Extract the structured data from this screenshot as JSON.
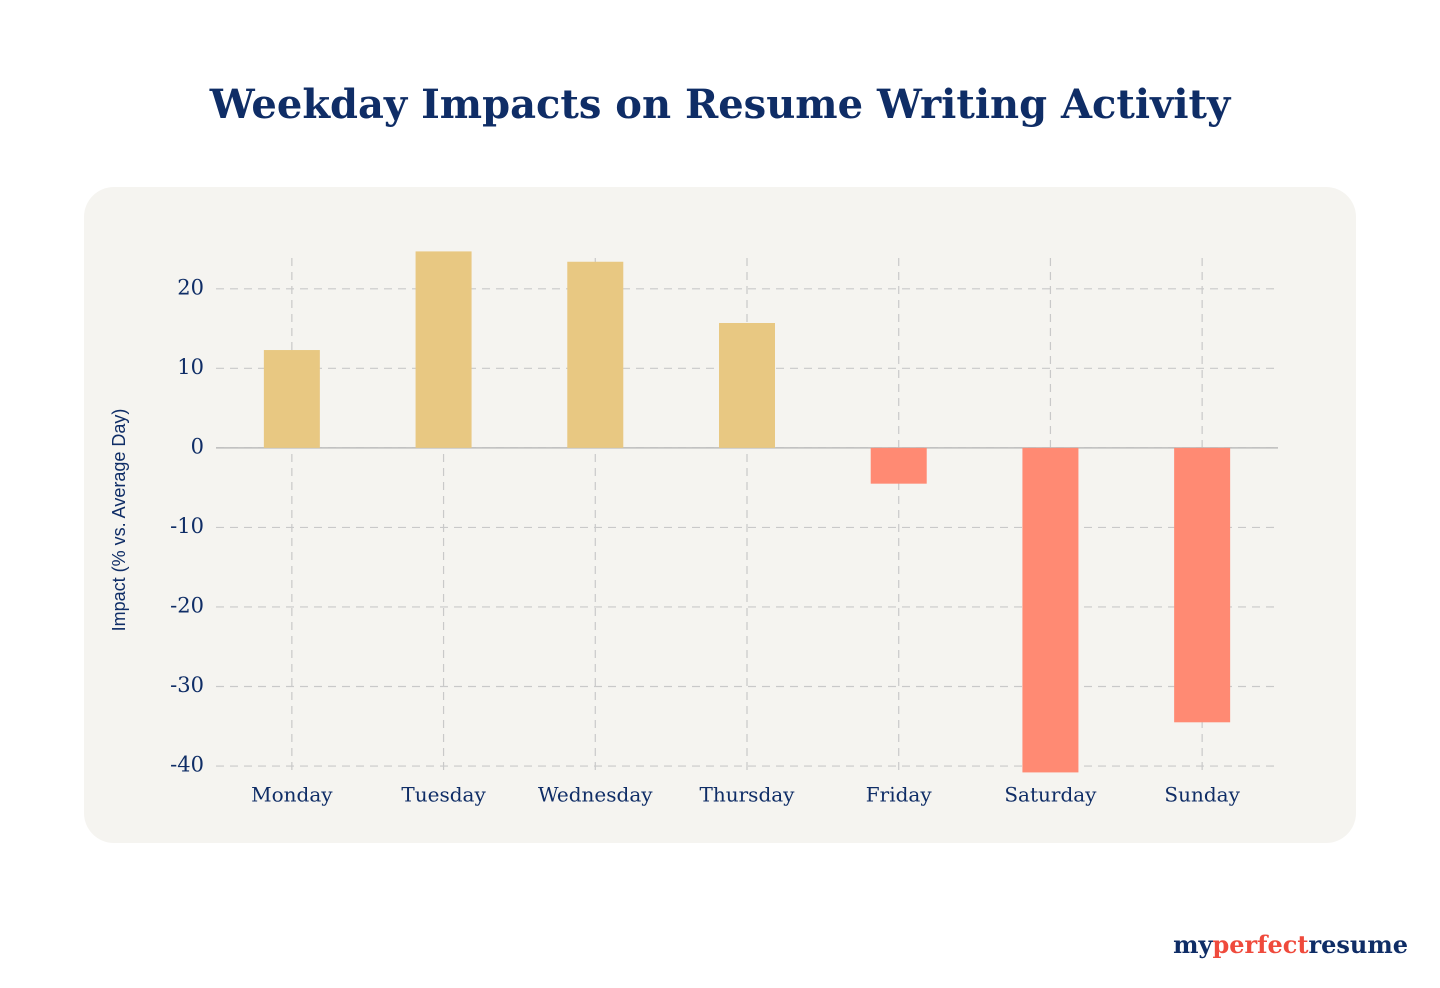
{
  "chart_data": {
    "type": "bar",
    "title": "Weekday Impacts on Resume Writing Activity",
    "y_label": "Impact (% vs. Average Day)",
    "categories": [
      "Monday",
      "Tuesday",
      "Wednesday",
      "Thursday",
      "Friday",
      "Saturday",
      "Sunday"
    ],
    "values": [
      12.3,
      24.7,
      23.4,
      15.7,
      -4.5,
      -40.8,
      -34.5
    ],
    "colors": [
      "#e8c882",
      "#e8c882",
      "#e8c882",
      "#e8c882",
      "#ff8a73",
      "#ff8a73",
      "#ff8a73"
    ],
    "ylim": [
      -41,
      24.5
    ],
    "yticks": [
      20,
      10,
      0,
      -10,
      -20,
      -30,
      -40
    ],
    "grid": true
  },
  "brand": [
    "my",
    "perfect",
    "resume"
  ]
}
